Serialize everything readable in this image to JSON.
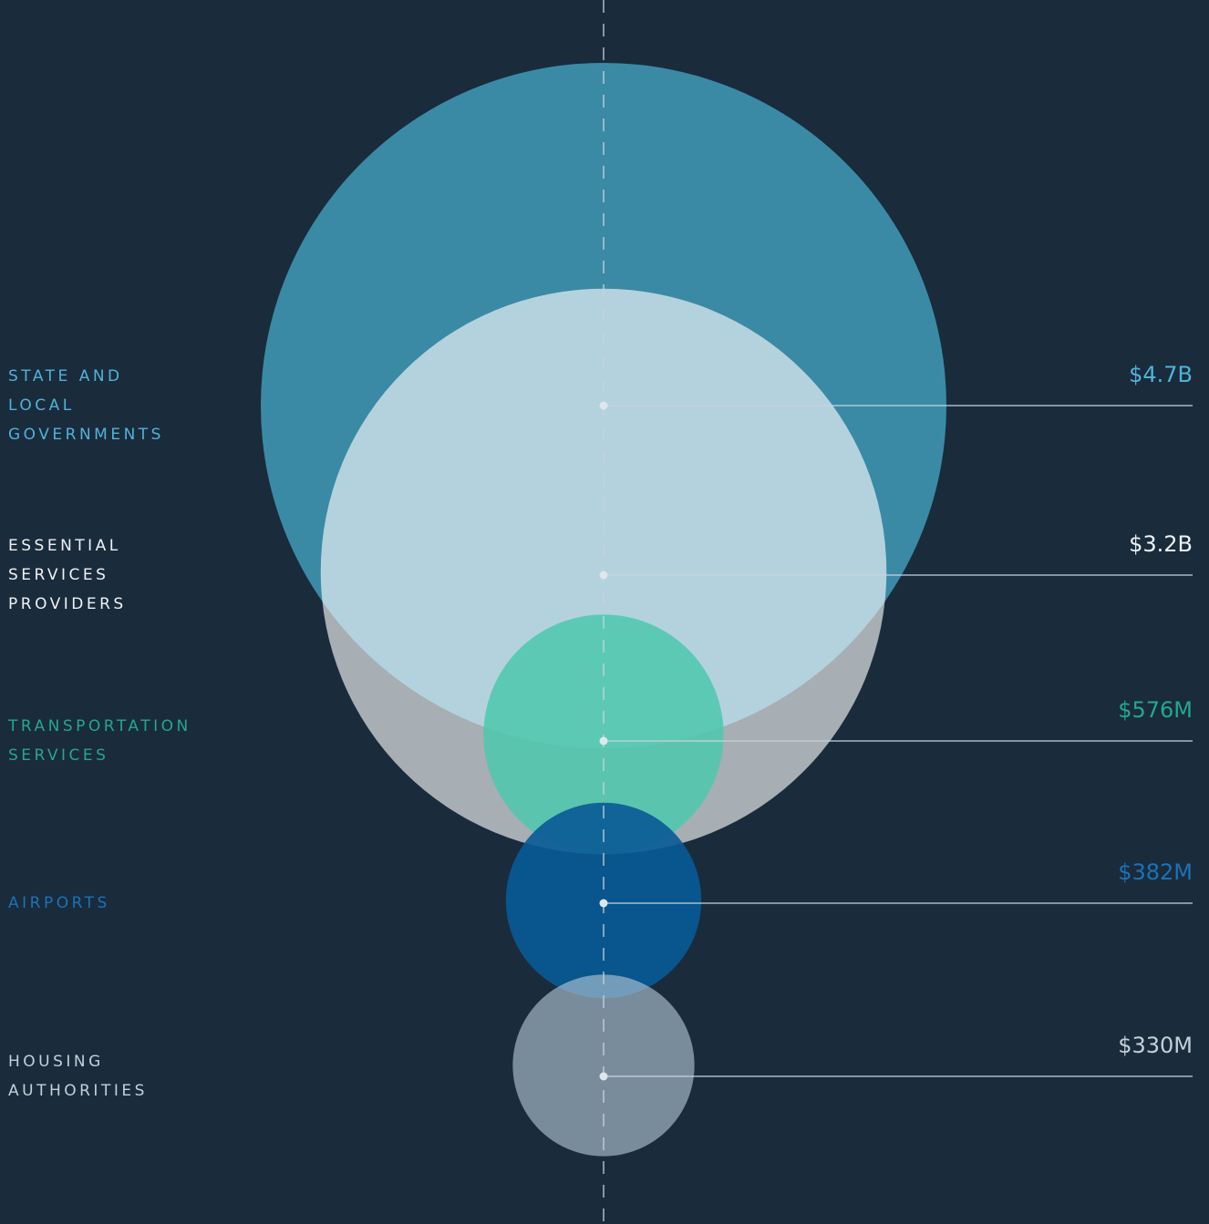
{
  "chart_data": {
    "type": "bubble",
    "categories": [
      [
        "STATE AND",
        "LOCAL",
        "GOVERNMENTS"
      ],
      [
        "ESSENTIAL",
        "SERVICES",
        "PROVIDERS"
      ],
      [
        "TRANSPORTATION",
        "SERVICES"
      ],
      [
        "AIRPORTS"
      ],
      [
        "HOUSING",
        "AUTHORITIES"
      ]
    ],
    "values": [
      4700000000,
      3200000000,
      576000000,
      382000000,
      330000000
    ],
    "value_labels": [
      "$4.7B",
      "$3.2B",
      "$576M",
      "$382M",
      "$330M"
    ],
    "colors": [
      "#4fb3d9",
      "#eef2f5",
      "#22a98c",
      "#1a73b8",
      "#c5d0d8"
    ],
    "bubble_colors": [
      "#3a8aa6",
      "rgba(255,255,255,0.62)",
      "rgba(76,200,174,0.85)",
      "rgba(8,90,150,0.9)",
      "rgba(180,200,214,0.62)"
    ]
  }
}
